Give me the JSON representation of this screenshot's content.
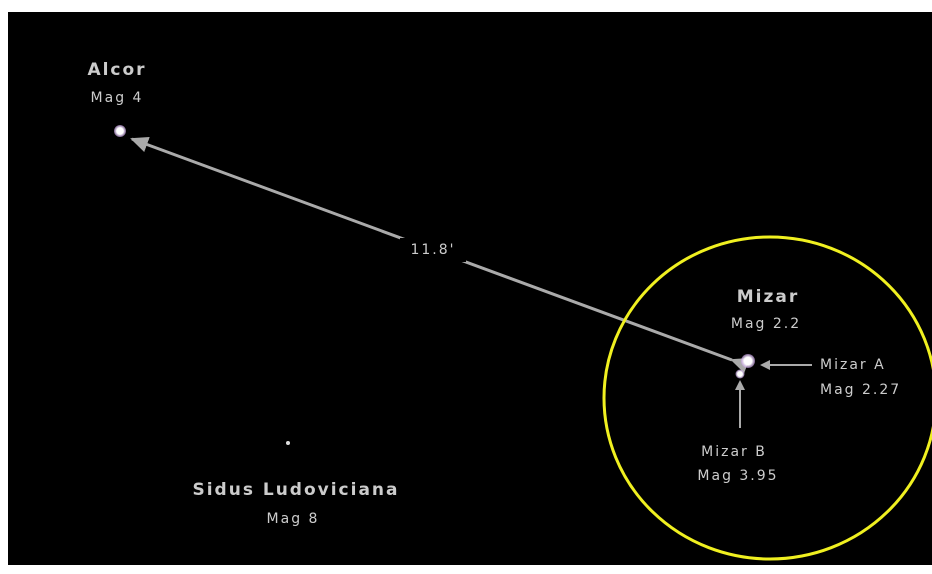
{
  "stars": [
    {
      "name": "Alcor",
      "magnitude": "Mag 4"
    },
    {
      "name": "Mizar",
      "magnitude": "Mag 2.2"
    },
    {
      "name": "Mizar A",
      "magnitude": "Mag 2.27"
    },
    {
      "name": "Mizar B",
      "magnitude": "Mag 3.95"
    },
    {
      "name": "Sidus Ludoviciana",
      "magnitude": "Mag 8"
    }
  ],
  "separation": "11.8'"
}
